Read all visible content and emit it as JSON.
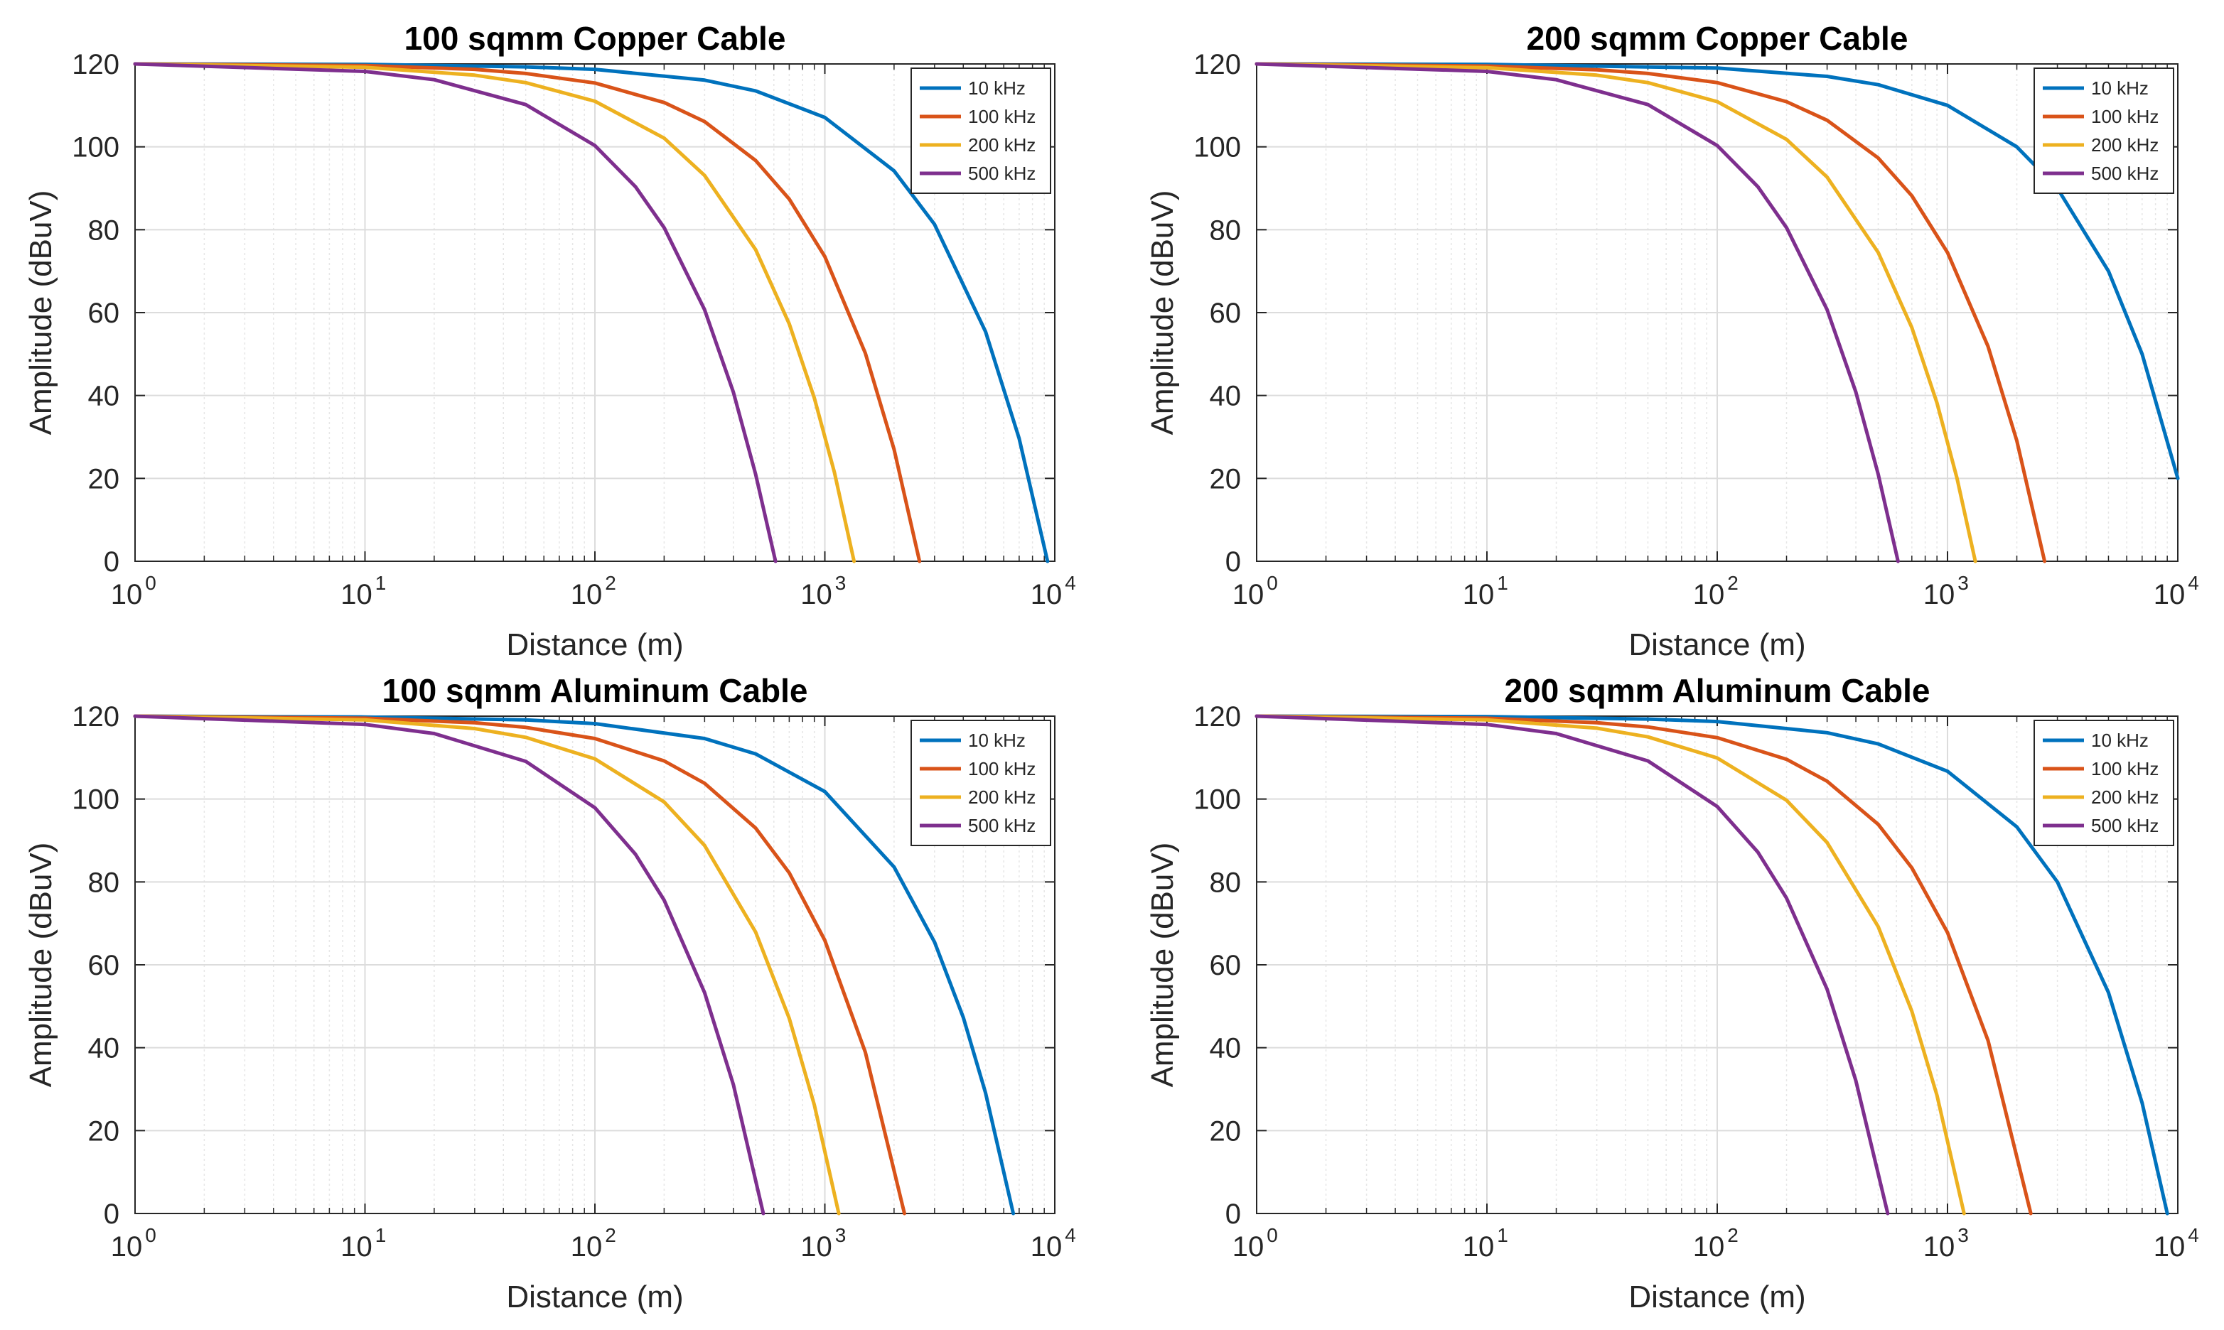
{
  "colors": {
    "10 kHz": "#0072BD",
    "100 kHz": "#D95319",
    "200 kHz": "#EDB120",
    "500 kHz": "#7E2F8E",
    "axis": "#262626",
    "grid_major": "#dcdcdc",
    "grid_minor": "#e6e6e6"
  },
  "chart_data": [
    {
      "type": "line",
      "title": "100 sqmm Copper Cable",
      "xlabel": "Distance (m)",
      "ylabel": "Amplitude (dBuV)",
      "xscale": "log",
      "xlim": [
        1,
        10000
      ],
      "ylim": [
        0,
        120
      ],
      "xticks": [
        {
          "base": "10",
          "exp": "0"
        },
        {
          "base": "10",
          "exp": "1"
        },
        {
          "base": "10",
          "exp": "2"
        },
        {
          "base": "10",
          "exp": "3"
        },
        {
          "base": "10",
          "exp": "4"
        }
      ],
      "yticks": [
        "0",
        "20",
        "40",
        "60",
        "80",
        "100",
        "120"
      ],
      "grid": "on",
      "legend_position": "top-right",
      "series": [
        {
          "name": "10 kHz",
          "x": [
            1,
            10,
            50,
            100,
            300,
            500,
            1000,
            2000,
            3000,
            5000,
            7000,
            9300
          ],
          "y": [
            120,
            119.9,
            119.3,
            118.7,
            116.1,
            113.5,
            107.1,
            94.2,
            81.3,
            55.4,
            29.6,
            0
          ]
        },
        {
          "name": "100 kHz",
          "x": [
            1,
            10,
            30,
            50,
            100,
            200,
            300,
            500,
            700,
            1000,
            1500,
            2000,
            2580
          ],
          "y": [
            120,
            119.6,
            118.7,
            117.7,
            115.4,
            110.7,
            106.1,
            96.7,
            87.4,
            73.5,
            50.2,
            27.0,
            0
          ]
        },
        {
          "name": "200 kHz",
          "x": [
            1,
            10,
            30,
            50,
            100,
            200,
            300,
            500,
            700,
            900,
            1100,
            1340
          ],
          "y": [
            120,
            119.2,
            117.3,
            115.5,
            111.0,
            102.1,
            93.1,
            75.2,
            57.3,
            39.4,
            21.5,
            0
          ]
        },
        {
          "name": "500 kHz",
          "x": [
            1,
            10,
            20,
            50,
            100,
            150,
            200,
            300,
            400,
            500,
            610
          ],
          "y": [
            120,
            118.2,
            116.2,
            110.2,
            100.3,
            90.4,
            80.5,
            60.7,
            40.8,
            21.0,
            0
          ]
        }
      ]
    },
    {
      "type": "line",
      "title": "200 sqmm Copper Cable",
      "xlabel": "Distance (m)",
      "ylabel": "Amplitude (dBuV)",
      "xscale": "log",
      "xlim": [
        1,
        10000
      ],
      "ylim": [
        0,
        120
      ],
      "xticks": [
        {
          "base": "10",
          "exp": "0"
        },
        {
          "base": "10",
          "exp": "1"
        },
        {
          "base": "10",
          "exp": "2"
        },
        {
          "base": "10",
          "exp": "3"
        },
        {
          "base": "10",
          "exp": "4"
        }
      ],
      "yticks": [
        "0",
        "20",
        "40",
        "60",
        "80",
        "100",
        "120"
      ],
      "grid": "on",
      "legend_position": "top-right",
      "series": [
        {
          "name": "10 kHz",
          "x": [
            1,
            10,
            100,
            300,
            500,
            1000,
            2000,
            3000,
            5000,
            7000,
            10000
          ],
          "y": [
            120,
            119.9,
            119.0,
            117.0,
            115.0,
            110.0,
            100.0,
            90.0,
            70.0,
            50.0,
            20.0
          ]
        },
        {
          "name": "100 kHz",
          "x": [
            1,
            10,
            30,
            50,
            100,
            200,
            300,
            500,
            700,
            1000,
            1500,
            2000,
            2640
          ],
          "y": [
            120,
            119.5,
            118.6,
            117.7,
            115.5,
            110.9,
            106.4,
            97.3,
            88.2,
            74.5,
            51.8,
            29.1,
            0
          ]
        },
        {
          "name": "200 kHz",
          "x": [
            1,
            10,
            30,
            50,
            100,
            200,
            300,
            500,
            700,
            900,
            1100,
            1320
          ],
          "y": [
            120,
            119.1,
            117.3,
            115.5,
            110.9,
            101.8,
            92.7,
            74.5,
            56.4,
            38.2,
            20.0,
            0
          ]
        },
        {
          "name": "500 kHz",
          "x": [
            1,
            10,
            20,
            50,
            100,
            150,
            200,
            300,
            400,
            500,
            610
          ],
          "y": [
            120,
            118.2,
            116.2,
            110.2,
            100.3,
            90.4,
            80.5,
            60.7,
            40.8,
            21.0,
            0
          ]
        }
      ]
    },
    {
      "type": "line",
      "title": "100 sqmm Aluminum Cable",
      "xlabel": "Distance (m)",
      "ylabel": "Amplitude (dBuV)",
      "xscale": "log",
      "xlim": [
        1,
        10000
      ],
      "ylim": [
        0,
        120
      ],
      "xticks": [
        {
          "base": "10",
          "exp": "0"
        },
        {
          "base": "10",
          "exp": "1"
        },
        {
          "base": "10",
          "exp": "2"
        },
        {
          "base": "10",
          "exp": "3"
        },
        {
          "base": "10",
          "exp": "4"
        }
      ],
      "yticks": [
        "0",
        "20",
        "40",
        "60",
        "80",
        "100",
        "120"
      ],
      "grid": "on",
      "legend_position": "top-right",
      "series": [
        {
          "name": "10 kHz",
          "x": [
            1,
            10,
            50,
            100,
            300,
            500,
            1000,
            2000,
            3000,
            4000,
            5000,
            6600
          ],
          "y": [
            120,
            119.8,
            119.1,
            118.2,
            114.6,
            110.9,
            101.8,
            83.6,
            65.5,
            47.3,
            29.1,
            0
          ]
        },
        {
          "name": "100 kHz",
          "x": [
            1,
            10,
            30,
            50,
            100,
            200,
            300,
            500,
            700,
            1000,
            1500,
            2220
          ],
          "y": [
            120,
            119.5,
            118.4,
            117.3,
            114.6,
            109.2,
            103.8,
            93.0,
            82.2,
            65.9,
            38.9,
            0
          ]
        },
        {
          "name": "200 kHz",
          "x": [
            1,
            10,
            30,
            50,
            100,
            200,
            300,
            500,
            700,
            900,
            1150
          ],
          "y": [
            120,
            119.1,
            117.0,
            114.9,
            109.7,
            99.3,
            88.8,
            67.9,
            47.1,
            26.2,
            0
          ]
        },
        {
          "name": "500 kHz",
          "x": [
            1,
            10,
            20,
            50,
            100,
            150,
            200,
            300,
            400,
            540
          ],
          "y": [
            120,
            118.0,
            115.8,
            109.1,
            97.9,
            86.7,
            75.6,
            53.3,
            31.1,
            0
          ]
        }
      ]
    },
    {
      "type": "line",
      "title": "200 sqmm Aluminum Cable",
      "xlabel": "Distance (m)",
      "ylabel": "Amplitude (dBuV)",
      "xscale": "log",
      "xlim": [
        1,
        10000
      ],
      "ylim": [
        0,
        120
      ],
      "xticks": [
        {
          "base": "10",
          "exp": "0"
        },
        {
          "base": "10",
          "exp": "1"
        },
        {
          "base": "10",
          "exp": "2"
        },
        {
          "base": "10",
          "exp": "3"
        },
        {
          "base": "10",
          "exp": "4"
        }
      ],
      "yticks": [
        "0",
        "20",
        "40",
        "60",
        "80",
        "100",
        "120"
      ],
      "grid": "on",
      "legend_position": "top-right",
      "series": [
        {
          "name": "10 kHz",
          "x": [
            1,
            10,
            50,
            100,
            300,
            500,
            1000,
            2000,
            3000,
            5000,
            7000,
            9000
          ],
          "y": [
            120,
            119.9,
            119.3,
            118.7,
            116.0,
            113.3,
            106.7,
            93.3,
            80.0,
            53.3,
            26.7,
            0
          ]
        },
        {
          "name": "100 kHz",
          "x": [
            1,
            10,
            30,
            50,
            100,
            200,
            300,
            500,
            700,
            1000,
            1500,
            2300
          ],
          "y": [
            120,
            119.5,
            118.4,
            117.4,
            114.8,
            109.6,
            104.3,
            93.9,
            83.4,
            67.8,
            41.7,
            0
          ]
        },
        {
          "name": "200 kHz",
          "x": [
            1,
            10,
            30,
            50,
            100,
            200,
            300,
            500,
            700,
            900,
            1180
          ],
          "y": [
            120,
            119.1,
            117.1,
            115.0,
            109.9,
            99.7,
            89.5,
            69.2,
            48.8,
            28.5,
            0
          ]
        },
        {
          "name": "500 kHz",
          "x": [
            1,
            10,
            20,
            50,
            100,
            150,
            200,
            300,
            400,
            550
          ],
          "y": [
            120,
            118.0,
            115.8,
            109.2,
            98.2,
            87.2,
            76.1,
            54.1,
            32.0,
            0
          ]
        }
      ]
    }
  ]
}
